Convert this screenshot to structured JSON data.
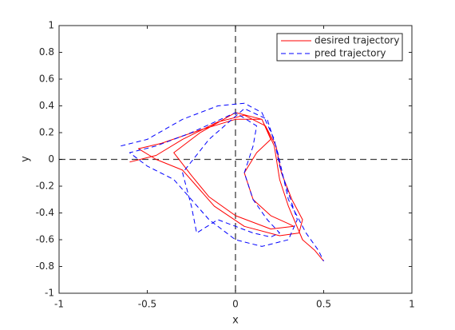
{
  "chart_data": {
    "type": "line",
    "xlabel": "x",
    "ylabel": "y",
    "xlim": [
      -1,
      1
    ],
    "ylim": [
      -1,
      1
    ],
    "xticks": [
      -1,
      -0.5,
      0,
      0.5,
      1
    ],
    "yticks": [
      -1,
      -0.8,
      -0.6,
      -0.4,
      -0.2,
      0,
      0.2,
      0.4,
      0.6,
      0.8,
      1
    ],
    "reference_lines": {
      "x": 0,
      "y": 0,
      "color": "#000000"
    },
    "grid": false,
    "legend": "upper right",
    "series": [
      {
        "name": "desired trajectory",
        "color": "#ff0000",
        "style": "solid",
        "x": [
          -0.6,
          -0.45,
          -0.3,
          -0.1,
          0.05,
          0.17,
          0.23,
          0.26,
          0.32,
          0.38,
          0.36,
          0.25,
          0.05,
          -0.12,
          -0.22,
          -0.3,
          -0.45,
          -0.55,
          -0.42,
          -0.2,
          0,
          0.15,
          0.2,
          0.12,
          0.05,
          0.1,
          0.2,
          0.3,
          0.33,
          0.2,
          0,
          -0.15,
          -0.25,
          -0.35,
          -0.2,
          0,
          0.15,
          0.22,
          0.25,
          0.3,
          0.38,
          0.45,
          0.5
        ],
        "y": [
          -0.02,
          0.03,
          0.15,
          0.28,
          0.33,
          0.25,
          0.1,
          -0.1,
          -0.3,
          -0.45,
          -0.55,
          -0.57,
          -0.5,
          -0.35,
          -0.2,
          -0.08,
          0,
          0.08,
          0.12,
          0.22,
          0.3,
          0.3,
          0.15,
          0.05,
          -0.1,
          -0.3,
          -0.42,
          -0.48,
          -0.5,
          -0.52,
          -0.42,
          -0.28,
          -0.12,
          0.05,
          0.2,
          0.35,
          0.3,
          0.1,
          -0.15,
          -0.35,
          -0.6,
          -0.68,
          -0.76
        ]
      },
      {
        "name": "pred trajectory",
        "color": "#0000ff",
        "style": "dashed",
        "x": [
          -0.65,
          -0.5,
          -0.3,
          -0.1,
          0.05,
          0.15,
          0.22,
          0.25,
          0.3,
          0.35,
          0.3,
          0.15,
          0,
          -0.15,
          -0.25,
          -0.35,
          -0.5,
          -0.6,
          -0.45,
          -0.25,
          0,
          0.12,
          0.1,
          0.05,
          0.1,
          0.18,
          0.25,
          0.2,
          0.1,
          -0.1,
          -0.22,
          -0.25,
          -0.3,
          -0.15,
          0.05,
          0.18,
          0.24,
          0.3,
          0.4,
          0.47,
          0.5
        ],
        "y": [
          0.1,
          0.15,
          0.3,
          0.4,
          0.42,
          0.35,
          0.15,
          -0.05,
          -0.25,
          -0.45,
          -0.6,
          -0.65,
          -0.6,
          -0.45,
          -0.3,
          -0.15,
          -0.05,
          0.05,
          0.1,
          0.2,
          0.35,
          0.25,
          0.1,
          -0.1,
          -0.3,
          -0.45,
          -0.55,
          -0.58,
          -0.55,
          -0.45,
          -0.55,
          -0.35,
          -0.1,
          0.15,
          0.38,
          0.3,
          0.05,
          -0.3,
          -0.55,
          -0.68,
          -0.76
        ]
      }
    ]
  }
}
